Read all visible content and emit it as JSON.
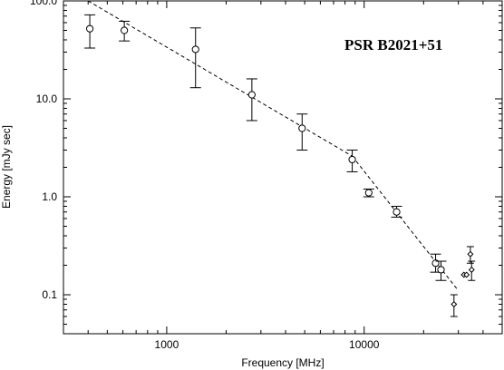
{
  "chart_data": {
    "type": "scatter",
    "title": "",
    "annotation": "PSR B2021+51",
    "xlabel": "Frequency [MHz]",
    "ylabel": "Energy [mJy sec]",
    "xscale": "log",
    "yscale": "log",
    "xlim": [
      300,
      50000
    ],
    "ylim": [
      0.04,
      100
    ],
    "x_ticks": [
      {
        "value": 1000,
        "label": "1000"
      },
      {
        "value": 10000,
        "label": "10000"
      }
    ],
    "y_ticks": [
      {
        "value": 0.1,
        "label": "0.1"
      },
      {
        "value": 1,
        "label": "1.0"
      },
      {
        "value": 10,
        "label": "10.0"
      },
      {
        "value": 100,
        "label": "100.0"
      }
    ],
    "grid": false,
    "legend": "none",
    "series": [
      {
        "marker": "circle",
        "points": [
          {
            "x": 408,
            "y": 52,
            "ylo": 33,
            "yhi": 72
          },
          {
            "x": 610,
            "y": 50,
            "ylo": 39,
            "yhi": 62
          },
          {
            "x": 1400,
            "y": 32,
            "ylo": 13,
            "yhi": 53
          },
          {
            "x": 2700,
            "y": 11,
            "ylo": 6,
            "yhi": 16
          },
          {
            "x": 4850,
            "y": 5,
            "ylo": 3,
            "yhi": 7
          },
          {
            "x": 8700,
            "y": 2.4,
            "ylo": 1.8,
            "yhi": 3
          },
          {
            "x": 10550,
            "y": 1.1,
            "ylo": 1.0,
            "yhi": 1.2
          },
          {
            "x": 14600,
            "y": 0.7,
            "ylo": 0.62,
            "yhi": 0.8
          },
          {
            "x": 23000,
            "y": 0.21,
            "ylo": 0.17,
            "yhi": 0.26
          },
          {
            "x": 24500,
            "y": 0.18,
            "ylo": 0.14,
            "yhi": 0.22
          }
        ]
      },
      {
        "marker": "diamond",
        "points": [
          {
            "x": 28500,
            "y": 0.08,
            "ylo": 0.06,
            "yhi": 0.1
          },
          {
            "x": 32000,
            "y": 0.16
          },
          {
            "x": 33000,
            "y": 0.16
          },
          {
            "x": 34500,
            "y": 0.26,
            "ylo": 0.21,
            "yhi": 0.31
          },
          {
            "x": 35000,
            "y": 0.18,
            "ylo": 0.14,
            "yhi": 0.22
          }
        ]
      }
    ],
    "fit_line": {
      "style": "dashed",
      "segments": [
        {
          "x": [
            400,
            8700
          ],
          "y": [
            100,
            2.6
          ]
        },
        {
          "x": [
            8700,
            30000
          ],
          "y": [
            2.6,
            0.11
          ]
        }
      ]
    }
  }
}
